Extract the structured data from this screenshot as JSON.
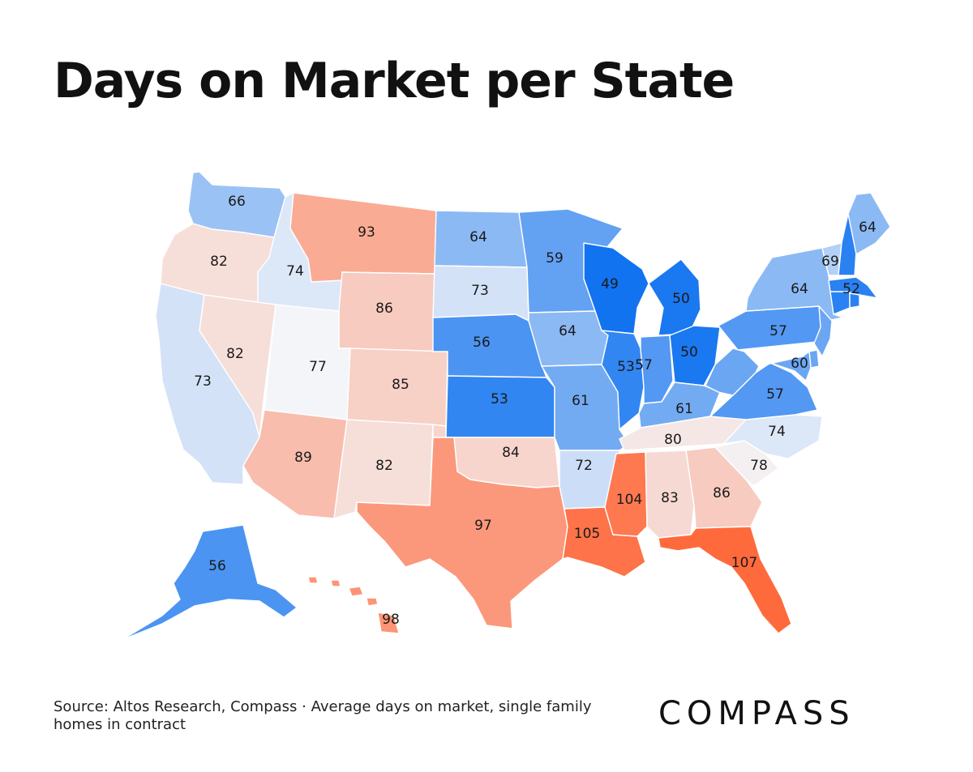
{
  "header": {
    "title": "Days on Market per State"
  },
  "map": {
    "scale": {
      "low_color": "#1273f0",
      "mid_color": "#f4f5f8",
      "high_color": "#ff6a3d"
    },
    "states": [
      {
        "id": "WA",
        "value": 66
      },
      {
        "id": "OR",
        "value": 82
      },
      {
        "id": "CA",
        "value": 73
      },
      {
        "id": "ID",
        "value": 74
      },
      {
        "id": "NV",
        "value": 82
      },
      {
        "id": "MT",
        "value": 93
      },
      {
        "id": "WY",
        "value": 86
      },
      {
        "id": "UT",
        "value": 77
      },
      {
        "id": "AZ",
        "value": 89
      },
      {
        "id": "CO",
        "value": 85
      },
      {
        "id": "NM",
        "value": 82
      },
      {
        "id": "ND",
        "value": 64
      },
      {
        "id": "SD",
        "value": 73
      },
      {
        "id": "NE",
        "value": 56
      },
      {
        "id": "KS",
        "value": 53
      },
      {
        "id": "OK",
        "value": 84
      },
      {
        "id": "TX",
        "value": 97
      },
      {
        "id": "MN",
        "value": 59
      },
      {
        "id": "IA",
        "value": 64
      },
      {
        "id": "MO",
        "value": 61
      },
      {
        "id": "AR",
        "value": 72
      },
      {
        "id": "LA",
        "value": 105
      },
      {
        "id": "WI",
        "value": 49
      },
      {
        "id": "IL",
        "value": 53
      },
      {
        "id": "MI",
        "value": 50
      },
      {
        "id": "IN",
        "value": 57
      },
      {
        "id": "OH",
        "value": 50
      },
      {
        "id": "KY",
        "value": 61
      },
      {
        "id": "TN",
        "value": 80
      },
      {
        "id": "MS",
        "value": 104
      },
      {
        "id": "AL",
        "value": 83
      },
      {
        "id": "GA",
        "value": 86
      },
      {
        "id": "FL",
        "value": 107
      },
      {
        "id": "SC",
        "value": 78
      },
      {
        "id": "NC",
        "value": 74
      },
      {
        "id": "VA",
        "value": 57
      },
      {
        "id": "WV",
        "value": 60
      },
      {
        "id": "PA",
        "value": 57
      },
      {
        "id": "NY",
        "value": 64
      },
      {
        "id": "VT",
        "value": 69
      },
      {
        "id": "NH",
        "value": 52
      },
      {
        "id": "ME",
        "value": 64
      },
      {
        "id": "MA",
        "value": 52
      },
      {
        "id": "CT",
        "value": 52
      },
      {
        "id": "RI",
        "value": 52
      },
      {
        "id": "NJ",
        "value": 60
      },
      {
        "id": "DE",
        "value": 60
      },
      {
        "id": "MD",
        "value": 60
      },
      {
        "id": "AK",
        "value": 56
      },
      {
        "id": "HI",
        "value": 98
      }
    ],
    "labels": [
      {
        "state": "WA",
        "text": "66"
      },
      {
        "state": "OR",
        "text": "82"
      },
      {
        "state": "ID",
        "text": "74"
      },
      {
        "state": "MT",
        "text": "93"
      },
      {
        "state": "WY",
        "text": "86"
      },
      {
        "state": "NV",
        "text": "82"
      },
      {
        "state": "CA",
        "text": "73"
      },
      {
        "state": "UT",
        "text": "77"
      },
      {
        "state": "CO",
        "text": "85"
      },
      {
        "state": "AZ",
        "text": "89"
      },
      {
        "state": "NM",
        "text": "82"
      },
      {
        "state": "ND",
        "text": "64"
      },
      {
        "state": "SD",
        "text": "73"
      },
      {
        "state": "NE",
        "text": "56"
      },
      {
        "state": "KS",
        "text": "53"
      },
      {
        "state": "OK",
        "text": "84"
      },
      {
        "state": "TX",
        "text": "97"
      },
      {
        "state": "MN",
        "text": "59"
      },
      {
        "state": "IA",
        "text": "64"
      },
      {
        "state": "MO",
        "text": "61"
      },
      {
        "state": "AR",
        "text": "72"
      },
      {
        "state": "LA",
        "text": "105"
      },
      {
        "state": "WI",
        "text": "49"
      },
      {
        "state": "IL",
        "text": "53"
      },
      {
        "state": "MI",
        "text": "50"
      },
      {
        "state": "IN",
        "text": "57"
      },
      {
        "state": "OH",
        "text": "50"
      },
      {
        "state": "KY",
        "text": "61"
      },
      {
        "state": "TN",
        "text": "80"
      },
      {
        "state": "MS",
        "text": "104"
      },
      {
        "state": "AL",
        "text": "83"
      },
      {
        "state": "GA",
        "text": "86"
      },
      {
        "state": "FL",
        "text": "107"
      },
      {
        "state": "SC",
        "text": "78"
      },
      {
        "state": "NC",
        "text": "74"
      },
      {
        "state": "VA",
        "text": "57"
      },
      {
        "state": "WV",
        "text": "60"
      },
      {
        "state": "PA",
        "text": "57"
      },
      {
        "state": "NY",
        "text": "64"
      },
      {
        "state": "VT",
        "text": "69"
      },
      {
        "state": "NH",
        "text": "52"
      },
      {
        "state": "ME",
        "text": "64"
      },
      {
        "state": "AK",
        "text": "56"
      },
      {
        "state": "HI",
        "text": "98"
      }
    ]
  },
  "footer": {
    "source": "Source: Altos Research, Compass · Average days on market, single family homes in contract",
    "logo": "COMPASS"
  }
}
